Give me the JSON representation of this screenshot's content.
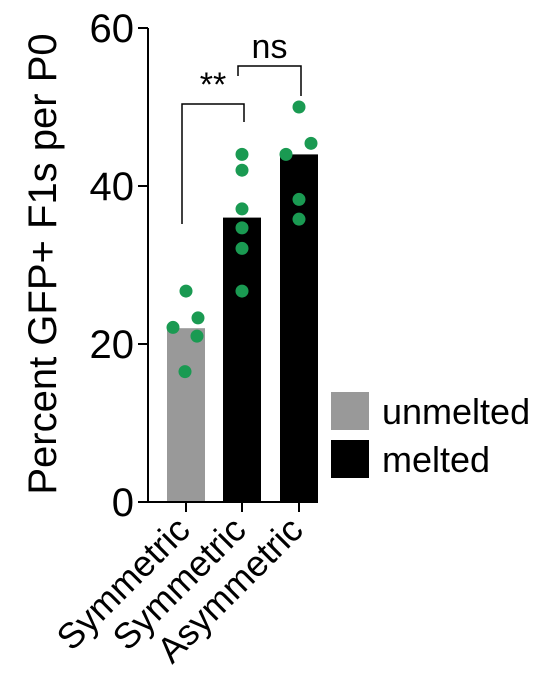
{
  "chart_data": {
    "type": "bar",
    "title": "",
    "xlabel": "",
    "ylabel": "Percent GFP+ F1s per P0",
    "ylim": [
      0,
      60
    ],
    "yticks": [
      0,
      20,
      40,
      60
    ],
    "grid": false,
    "legend": {
      "placement": "right",
      "entries": [
        {
          "name": "unmelted",
          "color": "#999999"
        },
        {
          "name": "melted",
          "color": "#000000"
        }
      ]
    },
    "categories": [
      "Symmetric",
      "Symmetric",
      "Asymmetric"
    ],
    "bars": [
      {
        "category": "Symmetric",
        "group": "unmelted",
        "value": 22,
        "color": "#999999"
      },
      {
        "category": "Symmetric",
        "group": "melted",
        "value": 36,
        "color": "#000000"
      },
      {
        "category": "Asymmetric",
        "group": "melted",
        "value": 44,
        "color": "#000000"
      }
    ],
    "points": [
      [
        26.7,
        23.3,
        22.1,
        21.0,
        16.5
      ],
      [
        44.0,
        42.0,
        37.1,
        34.7,
        32.1,
        26.7
      ],
      [
        50.0,
        45.4,
        44.0,
        38.3,
        35.8
      ]
    ],
    "point_color": "#1a9a52",
    "significance": [
      {
        "from": 0,
        "to": 1,
        "label": "**"
      },
      {
        "from": 1,
        "to": 2,
        "label": "ns"
      }
    ]
  }
}
